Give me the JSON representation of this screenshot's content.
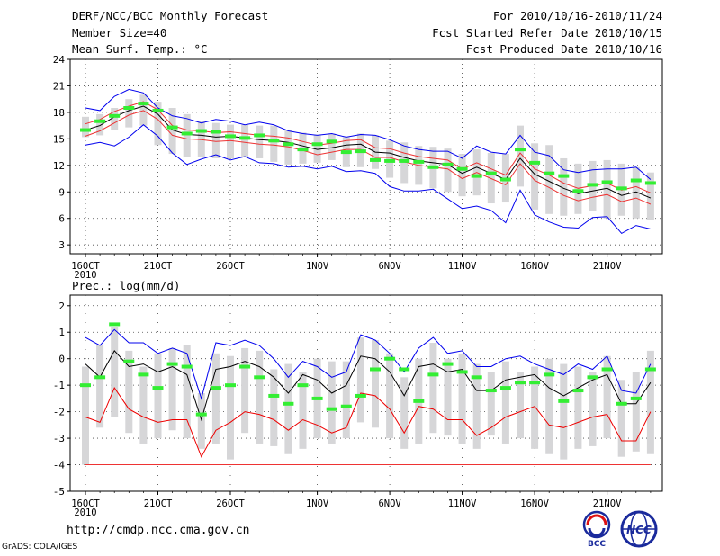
{
  "header": {
    "title": "DERF/NCC/BCC Monthly Forecast",
    "member_size": "Member Size=40",
    "variable": "Mean Surf. Temp.: °C",
    "period": "For 2010/10/16-2010/11/24",
    "refer_date": "Fcst Started Refer Date 2010/10/15",
    "produced_date": "Fcst Produced Date 2010/10/16"
  },
  "footer": {
    "url": "http://cmdp.ncc.cma.gov.cn",
    "credit": "GrADS: COLA/IGES",
    "logo_bcc": "BCC",
    "logo_ncc": "NCC"
  },
  "colors": {
    "ensemble_bar": "#d6d6d8",
    "observed": "#33ee33",
    "mean": "#000000",
    "upper": "#0000ee",
    "lower": "#ee0000",
    "red_band": "#ee3333"
  },
  "chart_data": [
    {
      "type": "line",
      "title": "Mean Surf. Temp.: °C",
      "xlabel": "",
      "ylabel": "",
      "ylim": [
        2,
        24
      ],
      "yticks": [
        3,
        6,
        9,
        12,
        15,
        18,
        21,
        24
      ],
      "grid": true,
      "xtick_labels": [
        "16OCT",
        "21OCT",
        "26OCT",
        "1NOV",
        "6NOV",
        "11NOV",
        "16NOV",
        "21NOV"
      ],
      "xtick_days": [
        0,
        5,
        10,
        16,
        21,
        26,
        31,
        36
      ],
      "year_label": "2010",
      "days": [
        0,
        1,
        2,
        3,
        4,
        5,
        6,
        7,
        8,
        9,
        10,
        11,
        12,
        13,
        14,
        15,
        16,
        17,
        18,
        19,
        20,
        21,
        22,
        23,
        24,
        25,
        26,
        27,
        28,
        29,
        30,
        31,
        32,
        33,
        34,
        35,
        36,
        37,
        38,
        39
      ],
      "box_high": [
        17.5,
        17.8,
        18.5,
        19.5,
        20,
        19.2,
        18.5,
        17.8,
        17,
        16.8,
        16.6,
        16.6,
        16.5,
        16.5,
        16,
        15.7,
        15.5,
        15.6,
        15.2,
        15.6,
        15.4,
        14.8,
        14.6,
        14.2,
        14.1,
        13.9,
        13.3,
        13.8,
        13.4,
        13.3,
        16.5,
        14.5,
        14.3,
        12.8,
        12.2,
        12.5,
        12.6,
        12.2,
        11.8,
        11.2
      ],
      "box_low": [
        15.2,
        15.4,
        16,
        16.3,
        16.5,
        14.3,
        13.3,
        13,
        13,
        12.8,
        12.8,
        12.9,
        12.8,
        12.4,
        12.1,
        12.2,
        12.3,
        12.6,
        11.8,
        11.8,
        11.6,
        10.6,
        10,
        9.8,
        9.4,
        9,
        8.5,
        8.6,
        7.7,
        7.8,
        9.6,
        7,
        6.5,
        6.3,
        6.5,
        6.8,
        6,
        6.3,
        6,
        5.8
      ],
      "series": [
        {
          "name": "Upper",
          "color": "#0000ee",
          "values": [
            18.5,
            18.2,
            19.8,
            20.6,
            20.2,
            18.5,
            17.6,
            17.3,
            16.8,
            17.2,
            17,
            16.6,
            16.9,
            16.6,
            15.9,
            15.6,
            15.4,
            15.6,
            15.2,
            15.5,
            15.4,
            14.9,
            14.2,
            13.8,
            13.6,
            13.6,
            12.8,
            14.2,
            13.5,
            13.3,
            15.4,
            13.5,
            13.1,
            11.5,
            11.2,
            11.5,
            11.6,
            11.6,
            11.8,
            10.4
          ]
        },
        {
          "name": "Lower",
          "color": "#0000ee",
          "values": [
            14.3,
            14.6,
            14.2,
            15.2,
            16.6,
            15.3,
            13.4,
            12.1,
            12.7,
            13.2,
            12.6,
            13,
            12.3,
            12.2,
            11.8,
            11.9,
            11.6,
            11.9,
            11.3,
            11.4,
            11.1,
            9.6,
            9.1,
            9.1,
            9.3,
            8.2,
            7.1,
            7.4,
            6.9,
            5.5,
            9.2,
            6.4,
            5.6,
            5,
            4.9,
            6.1,
            6.2,
            4.3,
            5.2,
            4.8
          ]
        },
        {
          "name": "Mean",
          "color": "#000000",
          "values": [
            16,
            16.5,
            17.5,
            18.2,
            18.7,
            17.8,
            16,
            15.5,
            15.4,
            15.2,
            15.3,
            15.1,
            14.9,
            14.8,
            14.6,
            14.2,
            13.8,
            14,
            14.3,
            14.4,
            13.5,
            13.4,
            12.9,
            12.5,
            12.3,
            12.1,
            11.1,
            11.8,
            11.1,
            10.4,
            12.8,
            11,
            10.2,
            9.4,
            8.8,
            9.1,
            9.4,
            8.6,
            9,
            8.3
          ]
        },
        {
          "name": "Mean+",
          "color": "#ee3333",
          "values": [
            16.7,
            17.2,
            18.1,
            18.7,
            19.2,
            18.3,
            16.5,
            16,
            15.9,
            15.7,
            15.8,
            15.6,
            15.4,
            15.3,
            15.1,
            14.7,
            14.3,
            14.5,
            14.8,
            14.9,
            14,
            13.9,
            13.4,
            13,
            12.8,
            12.6,
            11.6,
            12.3,
            11.6,
            10.9,
            13.4,
            11.6,
            10.9,
            10,
            9.4,
            9.7,
            10,
            9.2,
            9.6,
            8.9
          ]
        },
        {
          "name": "Mean-",
          "color": "#ee3333",
          "values": [
            15.3,
            15.9,
            16.8,
            17.7,
            18.2,
            17.2,
            15.4,
            15,
            14.9,
            14.7,
            14.8,
            14.6,
            14.4,
            14.3,
            14.1,
            13.7,
            13.2,
            13.5,
            13.8,
            13.8,
            12.9,
            12.9,
            12.4,
            12,
            11.8,
            11.6,
            10.5,
            11.2,
            10.5,
            9.8,
            12.2,
            10.3,
            9.5,
            8.6,
            8,
            8.4,
            8.7,
            7.9,
            8.3,
            7.6
          ]
        },
        {
          "name": "Observed",
          "color": "#33ee33",
          "values": [
            16,
            17,
            17.6,
            18.5,
            19,
            18.2,
            16.3,
            15.6,
            15.9,
            15.8,
            15.3,
            15.1,
            15.4,
            14.8,
            14.4,
            13.8,
            14.4,
            14.7,
            13.5,
            13.6,
            12.6,
            12.5,
            12.5,
            12.4,
            11.8,
            12.1,
            11.6,
            10.8,
            11.1,
            10.4,
            13.8,
            12.3,
            11.1,
            10.8,
            9.1,
            9.8,
            10.1,
            9.4,
            10.3,
            10
          ]
        }
      ]
    },
    {
      "type": "line",
      "title": "Prec.: log(mm/d)",
      "xlabel": "",
      "ylabel": "",
      "ylim": [
        -5,
        2.4
      ],
      "yticks": [
        -5,
        -4,
        -3,
        -2,
        -1,
        0,
        1,
        2
      ],
      "grid": true,
      "xtick_labels": [
        "16OCT",
        "21OCT",
        "26OCT",
        "1NOV",
        "6NOV",
        "11NOV",
        "16NOV",
        "21NOV"
      ],
      "xtick_days": [
        0,
        5,
        10,
        16,
        21,
        26,
        31,
        36
      ],
      "year_label": "2010",
      "days": [
        0,
        1,
        2,
        3,
        4,
        5,
        6,
        7,
        8,
        9,
        10,
        11,
        12,
        13,
        14,
        15,
        16,
        17,
        18,
        19,
        20,
        21,
        22,
        23,
        24,
        25,
        26,
        27,
        28,
        29,
        30,
        31,
        32,
        33,
        34,
        35,
        36,
        37,
        38,
        39
      ],
      "box_high": [
        -0.3,
        0.5,
        1.2,
        0.3,
        -0.3,
        0.2,
        0.4,
        0.5,
        -1.3,
        0.2,
        0.1,
        0.4,
        0.3,
        -0.4,
        -0.2,
        -0.5,
        0,
        -0.1,
        -0.1,
        0.8,
        0.7,
        0.2,
        -0.7,
        0,
        0.6,
        0,
        0.2,
        -0.2,
        -0.5,
        -0.1,
        -0.5,
        -0.3,
        0,
        -0.2,
        -0.3,
        -0.5,
        0.1,
        -0.8,
        -0.5,
        0.3
      ],
      "box_low": [
        -4,
        -2.6,
        -2.2,
        -2.8,
        -3.2,
        -3,
        -2.7,
        -3,
        -3.4,
        -3.2,
        -3.8,
        -2.8,
        -3.2,
        -3.3,
        -3.6,
        -3.4,
        -3,
        -3.2,
        -3,
        -2.4,
        -2.6,
        -3,
        -3.4,
        -3.2,
        -2.8,
        -2.9,
        -3.2,
        -3.4,
        -2.9,
        -3.2,
        -3,
        -3.4,
        -3.6,
        -3.8,
        -3.4,
        -3.3,
        -3,
        -3.7,
        -3.5,
        -3.6
      ],
      "series": [
        {
          "name": "Upper",
          "color": "#0000ee",
          "values": [
            0.8,
            0.5,
            1.1,
            0.6,
            0.6,
            0.2,
            0.4,
            0.2,
            -1.5,
            0.6,
            0.5,
            0.7,
            0.5,
            0,
            -0.7,
            -0.1,
            -0.3,
            -0.7,
            -0.5,
            0.9,
            0.7,
            0.2,
            -0.5,
            0.4,
            0.8,
            0.2,
            0.3,
            -0.3,
            -0.3,
            0,
            0.1,
            -0.2,
            -0.4,
            -0.6,
            -0.2,
            -0.4,
            0.1,
            -1.2,
            -1.3,
            -0.2
          ]
        },
        {
          "name": "Mean",
          "color": "#000000",
          "values": [
            -0.2,
            -0.7,
            0.3,
            -0.3,
            -0.2,
            -0.5,
            -0.3,
            -0.6,
            -2.3,
            -0.4,
            -0.3,
            -0.1,
            -0.3,
            -0.7,
            -1.3,
            -0.6,
            -0.8,
            -1.3,
            -1,
            0.1,
            0,
            -0.5,
            -1.4,
            -0.3,
            -0.2,
            -0.5,
            -0.4,
            -1.2,
            -1.2,
            -0.8,
            -0.7,
            -0.6,
            -1.1,
            -1.4,
            -1.1,
            -0.8,
            -0.6,
            -1.7,
            -1.7,
            -0.9
          ]
        },
        {
          "name": "Lower",
          "color": "#ee0000",
          "values": [
            -2.2,
            -2.4,
            -1.1,
            -1.9,
            -2.2,
            -2.4,
            -2.3,
            -2.3,
            -3.7,
            -2.7,
            -2.4,
            -2,
            -2.1,
            -2.3,
            -2.7,
            -2.3,
            -2.5,
            -2.8,
            -2.6,
            -1.3,
            -1.4,
            -1.9,
            -2.8,
            -1.8,
            -1.9,
            -2.3,
            -2.3,
            -2.9,
            -2.6,
            -2.2,
            -2,
            -1.8,
            -2.5,
            -2.6,
            -2.4,
            -2.2,
            -2.1,
            -3.1,
            -3.1,
            -2
          ]
        },
        {
          "name": "Floor",
          "color": "#ee3333",
          "values": [
            -4,
            -4,
            -4,
            -4,
            -4,
            -4,
            -4,
            -4,
            -4,
            -4,
            -4,
            -4,
            -4,
            -4,
            -4,
            -4,
            -4,
            -4,
            -4,
            -4,
            -4,
            -4,
            -4,
            -4,
            -4,
            -4,
            -4,
            -4,
            -4,
            -4,
            -4,
            -4,
            -4,
            -4,
            -4,
            -4,
            -4,
            -4,
            -4,
            -4
          ]
        },
        {
          "name": "Observed",
          "color": "#33ee33",
          "values": [
            -1,
            -0.7,
            1.3,
            -0.1,
            -0.6,
            -1.1,
            -0.2,
            -0.3,
            -2.1,
            -1.1,
            -1,
            -0.3,
            -0.7,
            -1.4,
            -1.7,
            -1,
            -1.5,
            -1.9,
            -1.8,
            -1.4,
            -0.4,
            0,
            -0.4,
            -1.6,
            -0.6,
            -0.2,
            -0.5,
            -0.7,
            -1.2,
            -1.1,
            -0.9,
            -0.9,
            -0.6,
            -1.6,
            -1.2,
            -0.7,
            -0.4,
            -1.7,
            -1.5,
            -0.4
          ]
        }
      ]
    }
  ]
}
